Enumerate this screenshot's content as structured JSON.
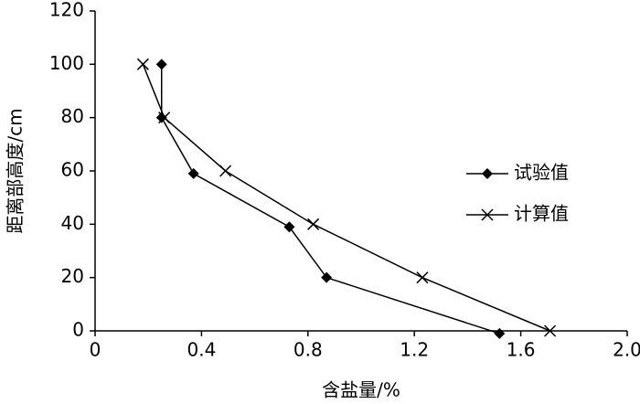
{
  "chart_data": {
    "type": "line",
    "x_label": "含盐量/%",
    "y_label": "距离部高度/cm",
    "xlim": [
      0,
      2
    ],
    "ylim": [
      0,
      120
    ],
    "xticks": [
      0,
      0.4,
      0.8,
      1.2,
      1.6,
      {
        "value": 2,
        "label": "2.0"
      }
    ],
    "yticks": [
      0,
      20,
      40,
      60,
      80,
      100,
      120
    ],
    "legend": "center-right",
    "series": [
      {
        "name": "试验值",
        "color": "#000000",
        "marker": "diamond",
        "x": [
          0.25,
          0.25,
          0.37,
          0.73,
          0.87,
          1.52
        ],
        "values": [
          100,
          80,
          59,
          39,
          20,
          -1
        ]
      },
      {
        "name": "计算值",
        "color": "#000000",
        "marker": "x",
        "x": [
          0.18,
          0.26,
          0.49,
          0.82,
          1.23,
          1.71
        ],
        "values": [
          100,
          80,
          60,
          40,
          20,
          0
        ]
      }
    ]
  }
}
